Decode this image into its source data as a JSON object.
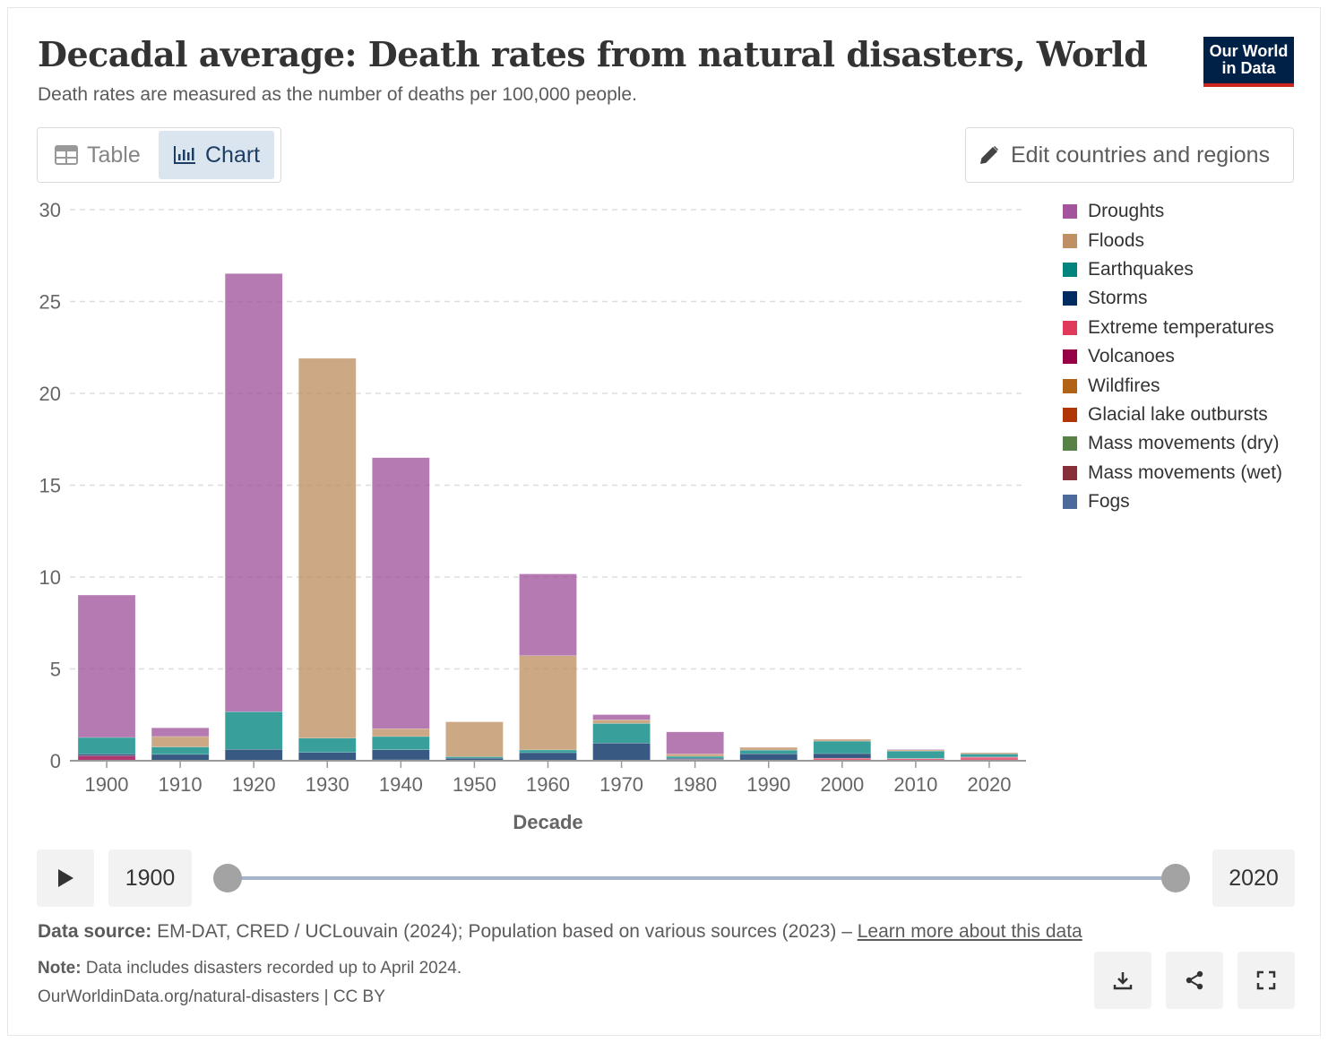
{
  "header": {
    "title": "Decadal average: Death rates from natural disasters, World",
    "subtitle": "Death rates are measured as the number of deaths per 100,000 people.",
    "logo": "Our World in Data"
  },
  "tabs": [
    {
      "label": "Table",
      "icon": "table-icon"
    },
    {
      "label": "Chart",
      "icon": "chart-icon",
      "active": true
    }
  ],
  "edit_button": {
    "label": "Edit countries and regions",
    "icon": "pencil-icon"
  },
  "timeline": {
    "start": "1900",
    "end": "2020"
  },
  "footer": {
    "source_label": "Data source:",
    "source_text": "EM-DAT, CRED / UCLouvain (2024); Population based on various sources (2023) –",
    "source_link": "Learn more about this data",
    "note_label": "Note:",
    "note_text": "Data includes disasters recorded up to April 2024.",
    "url": "OurWorldinData.org/natural-disasters | CC BY"
  },
  "chart_data": {
    "type": "bar",
    "stacked": true,
    "xlabel": "Decade",
    "ylabel": "",
    "ylim": [
      0,
      30
    ],
    "yticks": [
      0,
      5,
      10,
      15,
      20,
      25,
      30
    ],
    "grid": true,
    "legend_position": "right",
    "categories": [
      "1900",
      "1910",
      "1920",
      "1930",
      "1940",
      "1950",
      "1960",
      "1970",
      "1980",
      "1990",
      "2000",
      "2010",
      "2020"
    ],
    "series": [
      {
        "name": "Fogs",
        "color": "#4c6a9c",
        "values": [
          0,
          0,
          0,
          0,
          0,
          0,
          0,
          0,
          0,
          0,
          0,
          0,
          0
        ]
      },
      {
        "name": "Mass movements (wet)",
        "color": "#883039",
        "values": [
          0.02,
          0.02,
          0.02,
          0.01,
          0.05,
          0.02,
          0.02,
          0.01,
          0.02,
          0.01,
          0.01,
          0.01,
          0.01
        ]
      },
      {
        "name": "Mass movements (dry)",
        "color": "#578145",
        "values": [
          0,
          0,
          0,
          0,
          0,
          0,
          0,
          0,
          0,
          0,
          0,
          0,
          0
        ]
      },
      {
        "name": "Glacial lake outbursts",
        "color": "#b13507",
        "values": [
          0,
          0,
          0,
          0,
          0,
          0,
          0,
          0,
          0,
          0,
          0,
          0,
          0
        ]
      },
      {
        "name": "Wildfires",
        "color": "#b16214",
        "values": [
          0,
          0,
          0,
          0,
          0,
          0,
          0,
          0,
          0,
          0,
          0,
          0,
          0
        ]
      },
      {
        "name": "Volcanoes",
        "color": "#970046",
        "values": [
          0.25,
          0,
          0,
          0,
          0,
          0,
          0,
          0,
          0.03,
          0,
          0,
          0,
          0
        ]
      },
      {
        "name": "Extreme temperatures",
        "color": "#e03a5b",
        "values": [
          0,
          0,
          0,
          0,
          0,
          0,
          0,
          0,
          0.02,
          0,
          0.13,
          0.1,
          0.18
        ]
      },
      {
        "name": "Storms",
        "color": "#002c5f",
        "values": [
          0.1,
          0.33,
          0.6,
          0.45,
          0.55,
          0.12,
          0.42,
          0.95,
          0.07,
          0.37,
          0.25,
          0.02,
          0.03
        ]
      },
      {
        "name": "Earthquakes",
        "color": "#00847e",
        "values": [
          0.9,
          0.4,
          2.05,
          0.77,
          0.72,
          0.08,
          0.15,
          1.07,
          0.1,
          0.2,
          0.68,
          0.4,
          0.15
        ]
      },
      {
        "name": "Floods",
        "color": "#be9063",
        "values": [
          0,
          0.57,
          0,
          20.68,
          0.42,
          1.9,
          5.13,
          0.2,
          0.13,
          0.15,
          0.1,
          0.06,
          0.07
        ]
      },
      {
        "name": "Droughts",
        "color": "#a2559c",
        "values": [
          7.75,
          0.47,
          23.85,
          0,
          14.76,
          0,
          4.45,
          0.28,
          1.2,
          0,
          0,
          0.03,
          0
        ]
      }
    ]
  }
}
